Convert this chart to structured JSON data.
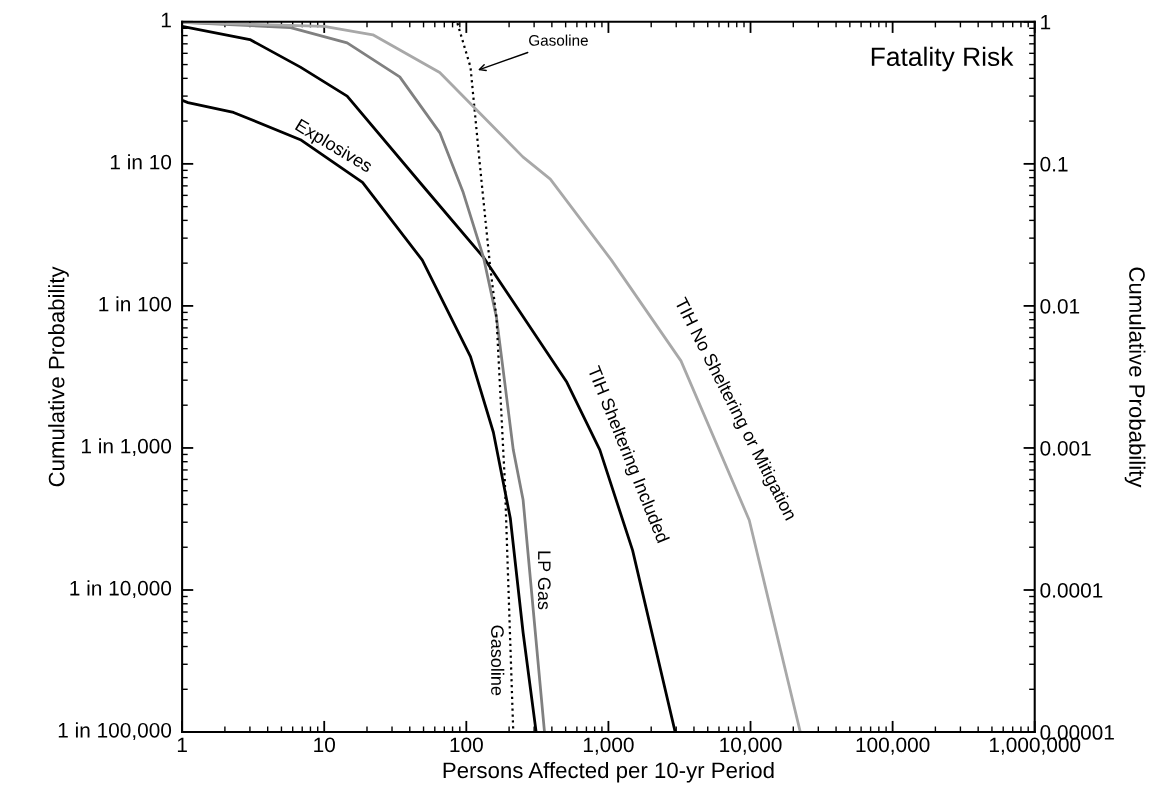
{
  "chart_data": {
    "type": "line",
    "title": "Fatality Risk",
    "xlabel": "Persons Affected per 10-yr Period",
    "ylabel": "Cumulative Probability",
    "y2label": "Cumulative Probability",
    "log": "xy",
    "xlim": [
      1,
      1000000
    ],
    "ylim": [
      1e-05,
      1
    ],
    "xticks": [
      {
        "value": 1,
        "label": "1"
      },
      {
        "value": 10,
        "label": "10"
      },
      {
        "value": 100,
        "label": "100"
      },
      {
        "value": 1000,
        "label": "1,000"
      },
      {
        "value": 10000,
        "label": "10,000"
      },
      {
        "value": 100000,
        "label": "100,000"
      },
      {
        "value": 1000000,
        "label": "1,000,000"
      }
    ],
    "yticks": [
      {
        "value": 1,
        "label": "1"
      },
      {
        "value": 0.1,
        "label": "0.1"
      },
      {
        "value": 0.01,
        "label": "0.01"
      },
      {
        "value": 0.001,
        "label": "0.001"
      },
      {
        "value": 0.0001,
        "label": "0.0001"
      },
      {
        "value": 1e-05,
        "label": "0.00001"
      }
    ],
    "grid": false,
    "legend": false,
    "marker": "none",
    "series": [
      {
        "name": "Explosives",
        "color": "#000000",
        "line_style": "solid",
        "x": [
          1,
          1.1,
          2.3,
          6.8,
          18.6,
          49,
          107,
          155,
          204,
          251,
          310
        ],
        "values": [
          0.28,
          0.27,
          0.23,
          0.148,
          0.074,
          0.021,
          0.0044,
          0.00129,
          0.00032,
          5e-05,
          1e-05
        ]
      },
      {
        "name": "TIH Sheltering Included",
        "color": "#000000",
        "line_style": "solid",
        "x": [
          1,
          3,
          6.8,
          14.5,
          50,
          132,
          510,
          870,
          1480,
          2950
        ],
        "values": [
          0.93,
          0.75,
          0.48,
          0.3,
          0.069,
          0.022,
          0.0029,
          0.00097,
          0.00019,
          1e-05
        ]
      },
      {
        "name": "LP Gas",
        "color": "#808080",
        "line_style": "solid",
        "x": [
          1,
          5.8,
          14.5,
          34,
          65,
          95,
          132,
          163,
          214,
          251,
          355
        ],
        "values": [
          0.99,
          0.91,
          0.71,
          0.41,
          0.166,
          0.063,
          0.022,
          0.0083,
          0.00097,
          0.00043,
          1e-05
        ]
      },
      {
        "name": "Gasoline",
        "color": "#000000",
        "line_style": "dotted",
        "x": [
          80,
          86,
          107,
          125,
          147,
          163,
          187,
          214
        ],
        "values": [
          1,
          1,
          0.48,
          0.095,
          0.019,
          0.0083,
          0.00056,
          1e-05
        ]
      },
      {
        "name": "TIH No Sheltering or Mitigation",
        "color": "#a8a8a8",
        "line_style": "solid",
        "x": [
          1,
          10,
          22,
          65,
          250,
          390,
          1050,
          3240,
          9800,
          22400
        ],
        "values": [
          0.99,
          0.93,
          0.81,
          0.44,
          0.112,
          0.078,
          0.021,
          0.0041,
          0.00031,
          1e-05
        ]
      }
    ],
    "annotations": [
      "Gasoline",
      "1",
      "1 in 10",
      "1 in 100",
      "1 in 1,000",
      "1 in 10,000",
      "1 in 100,000"
    ]
  }
}
